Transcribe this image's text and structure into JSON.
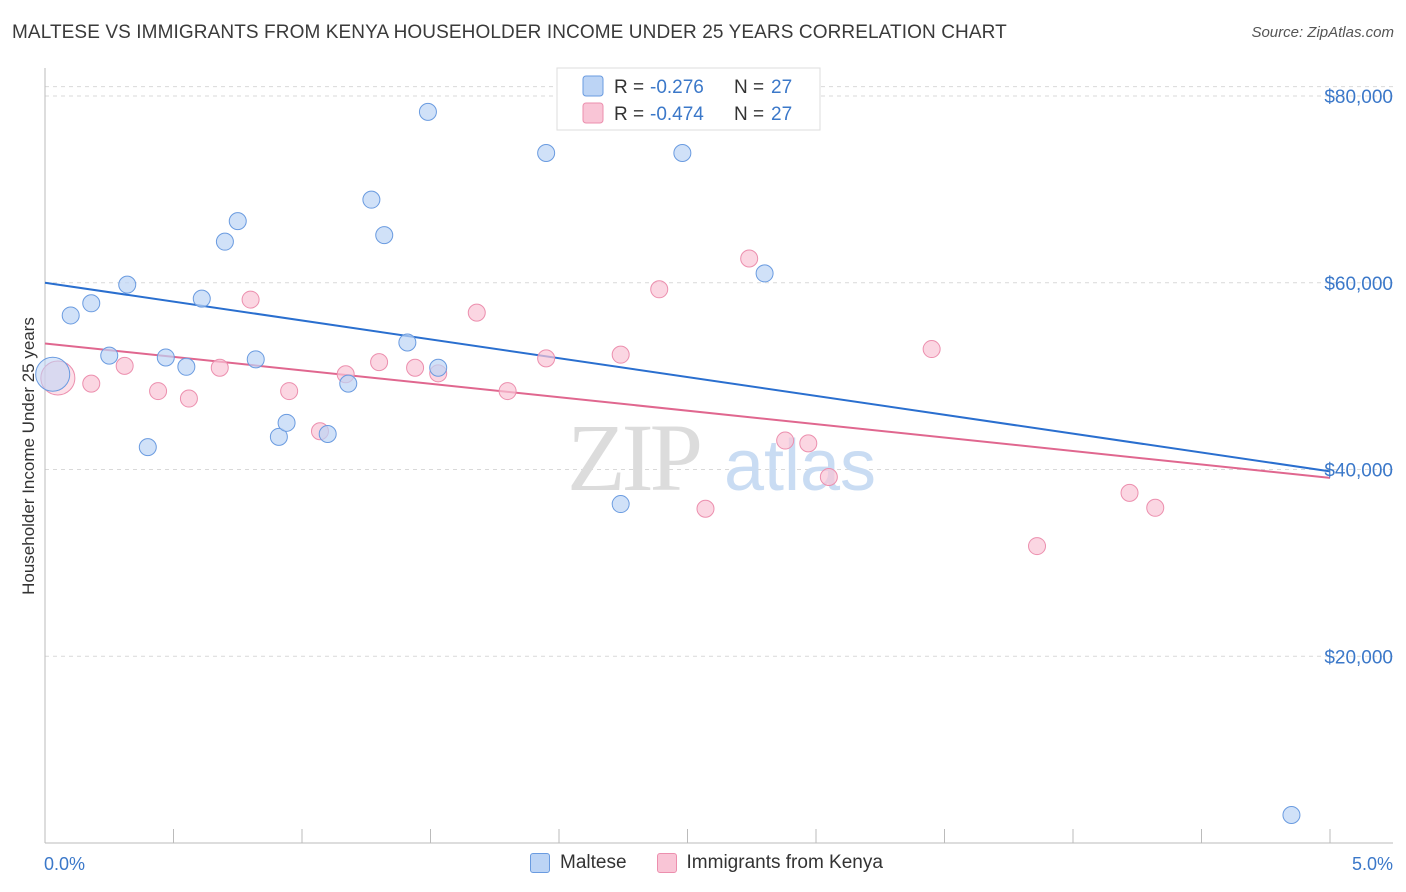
{
  "header": {
    "title": "MALTESE VS IMMIGRANTS FROM KENYA HOUSEHOLDER INCOME UNDER 25 YEARS CORRELATION CHART",
    "source": "Source: ZipAtlas.com"
  },
  "watermark": {
    "zip": "ZIP",
    "atlas": "atlas"
  },
  "legend": {
    "rows": [
      {
        "r_label": "R =",
        "r_value": "-0.276",
        "n_label": "N =",
        "n_value": "27"
      },
      {
        "r_label": "R =",
        "r_value": "-0.474",
        "n_label": "N =",
        "n_value": "27"
      }
    ]
  },
  "chart_data": {
    "type": "scatter",
    "title": "MALTESE VS IMMIGRANTS FROM KENYA HOUSEHOLDER INCOME UNDER 25 YEARS CORRELATION CHART",
    "xlabel": "",
    "ylabel": "Householder Income Under 25 years",
    "xlim": [
      0,
      5
    ],
    "ylim": [
      0,
      83000
    ],
    "x_tick_labels": [
      "0.0%",
      "5.0%"
    ],
    "y_ticks": [
      20000,
      40000,
      60000,
      80000
    ],
    "y_tick_labels": [
      "$20,000",
      "$40,000",
      "$60,000",
      "$80,000"
    ],
    "grid": "horizontal dashed",
    "legend_position": "top-center",
    "series": [
      {
        "name": "Maltese",
        "color": "#6a9be0",
        "fill": "#bcd4f5",
        "trend": {
          "x": [
            0,
            5
          ],
          "y": [
            60000,
            39800
          ]
        },
        "points": [
          {
            "x": 0.03,
            "y": 50200,
            "big": true
          },
          {
            "x": 0.1,
            "y": 56500
          },
          {
            "x": 0.18,
            "y": 57800
          },
          {
            "x": 0.25,
            "y": 52200
          },
          {
            "x": 0.32,
            "y": 59800
          },
          {
            "x": 0.4,
            "y": 42400
          },
          {
            "x": 0.47,
            "y": 52000
          },
          {
            "x": 0.55,
            "y": 51000
          },
          {
            "x": 0.61,
            "y": 58300
          },
          {
            "x": 0.7,
            "y": 64400
          },
          {
            "x": 0.75,
            "y": 66600
          },
          {
            "x": 0.82,
            "y": 51800
          },
          {
            "x": 0.91,
            "y": 43500
          },
          {
            "x": 0.94,
            "y": 45000
          },
          {
            "x": 1.1,
            "y": 43800
          },
          {
            "x": 1.18,
            "y": 49200
          },
          {
            "x": 1.27,
            "y": 68900
          },
          {
            "x": 1.32,
            "y": 65100
          },
          {
            "x": 1.41,
            "y": 53600
          },
          {
            "x": 1.53,
            "y": 50900
          },
          {
            "x": 1.49,
            "y": 78300
          },
          {
            "x": 1.95,
            "y": 73900
          },
          {
            "x": 2.24,
            "y": 36300
          },
          {
            "x": 2.32,
            "y": 78600
          },
          {
            "x": 2.48,
            "y": 73900
          },
          {
            "x": 2.8,
            "y": 61000
          },
          {
            "x": 4.85,
            "y": 3000
          }
        ]
      },
      {
        "name": "Immigrants from Kenya",
        "color": "#ec8fae",
        "fill": "#f9c5d6",
        "trend": {
          "x": [
            0,
            5
          ],
          "y": [
            53500,
            39100
          ]
        },
        "points": [
          {
            "x": 0.05,
            "y": 49800,
            "big": true
          },
          {
            "x": 0.18,
            "y": 49200
          },
          {
            "x": 0.31,
            "y": 51100
          },
          {
            "x": 0.44,
            "y": 48400
          },
          {
            "x": 0.56,
            "y": 47600
          },
          {
            "x": 0.68,
            "y": 50900
          },
          {
            "x": 0.8,
            "y": 58200
          },
          {
            "x": 0.95,
            "y": 48400
          },
          {
            "x": 1.07,
            "y": 44100
          },
          {
            "x": 1.17,
            "y": 50200
          },
          {
            "x": 1.3,
            "y": 51500
          },
          {
            "x": 1.44,
            "y": 50900
          },
          {
            "x": 1.53,
            "y": 50300
          },
          {
            "x": 1.68,
            "y": 56800
          },
          {
            "x": 1.8,
            "y": 48400
          },
          {
            "x": 1.95,
            "y": 51900
          },
          {
            "x": 2.24,
            "y": 52300
          },
          {
            "x": 2.39,
            "y": 59300
          },
          {
            "x": 2.57,
            "y": 35800
          },
          {
            "x": 2.74,
            "y": 62600
          },
          {
            "x": 2.88,
            "y": 43100
          },
          {
            "x": 2.97,
            "y": 42800
          },
          {
            "x": 3.05,
            "y": 39200
          },
          {
            "x": 3.45,
            "y": 52900
          },
          {
            "x": 3.86,
            "y": 31800
          },
          {
            "x": 4.22,
            "y": 37500
          },
          {
            "x": 4.32,
            "y": 35900
          }
        ]
      }
    ]
  }
}
